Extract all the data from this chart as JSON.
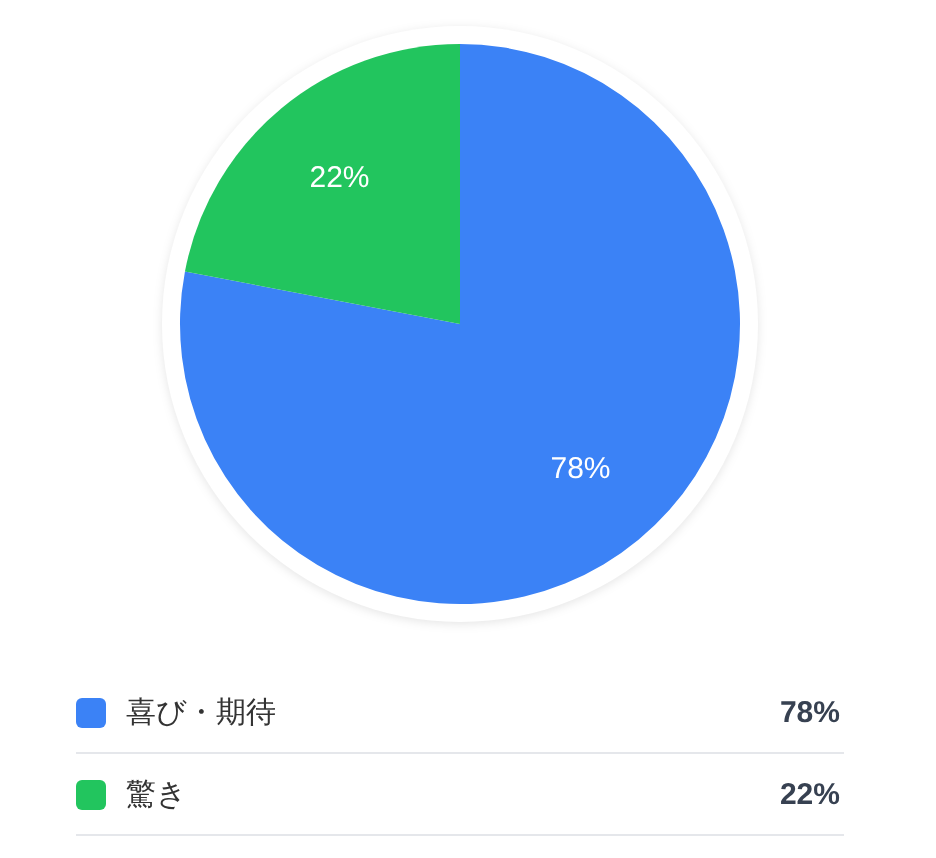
{
  "chart_data": {
    "type": "pie",
    "categories": [
      "喜び・期待",
      "驚き"
    ],
    "values": [
      78,
      22
    ],
    "colors": [
      "#3b82f6",
      "#22c55e"
    ],
    "value_labels": [
      "78%",
      "22%"
    ],
    "legend": "bottom"
  }
}
